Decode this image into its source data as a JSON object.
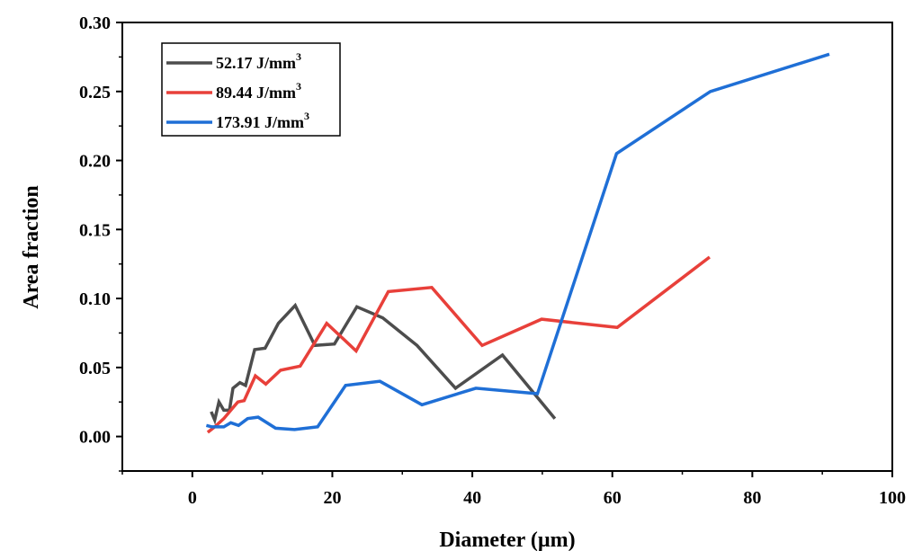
{
  "chart_data": {
    "type": "line",
    "xlabel": "Diameter (µm)",
    "ylabel": "Area fraction",
    "xlim": [
      -10,
      100
    ],
    "ylim": [
      -0.025,
      0.3
    ],
    "x_ticks": [
      {
        "value": 0,
        "label": "0"
      },
      {
        "value": 20,
        "label": "20"
      },
      {
        "value": 40,
        "label": "40"
      },
      {
        "value": 60,
        "label": "60"
      },
      {
        "value": 80,
        "label": "80"
      },
      {
        "value": 100,
        "label": "100"
      }
    ],
    "y_ticks": [
      {
        "value": 0,
        "label": "0.00"
      },
      {
        "value": 0.05,
        "label": "0.05"
      },
      {
        "value": 0.1,
        "label": "0.10"
      },
      {
        "value": 0.15,
        "label": "0.15"
      },
      {
        "value": 0.2,
        "label": "0.20"
      },
      {
        "value": 0.25,
        "label": "0.25"
      },
      {
        "value": 0.3,
        "label": "0.30"
      }
    ],
    "grid": false,
    "legend_position": "top-left",
    "series": [
      {
        "name": "52.17 J/mm",
        "name_sup": "3",
        "color": "#4d4d4d",
        "x": [
          2.7,
          3.2,
          3.8,
          4.5,
          5.3,
          5.8,
          6.8,
          7.6,
          8.9,
          10.4,
          12.3,
          14.7,
          17.5,
          20.3,
          23.5,
          27.2,
          32.1,
          37.6,
          44.3,
          51.8
        ],
        "y": [
          0.018,
          0.012,
          0.025,
          0.019,
          0.019,
          0.035,
          0.039,
          0.037,
          0.063,
          0.064,
          0.082,
          0.095,
          0.066,
          0.067,
          0.094,
          0.086,
          0.066,
          0.035,
          0.059,
          0.013
        ]
      },
      {
        "name": "89.44 J/mm",
        "name_sup": "3",
        "color": "#e8403a",
        "x": [
          2.2,
          3.2,
          4.5,
          5.5,
          6.5,
          7.4,
          9.0,
          10.5,
          12.6,
          15.4,
          19.2,
          23.4,
          28.0,
          34.2,
          41.4,
          49.9,
          60.7,
          73.9
        ],
        "y": [
          0.003,
          0.007,
          0.013,
          0.019,
          0.025,
          0.026,
          0.044,
          0.038,
          0.048,
          0.051,
          0.082,
          0.062,
          0.105,
          0.108,
          0.066,
          0.085,
          0.079,
          0.13
        ]
      },
      {
        "name": "173.91 J/mm",
        "name_sup": "3",
        "color": "#1f6fd6",
        "x": [
          2.0,
          2.8,
          3.5,
          4.5,
          5.5,
          6.6,
          7.9,
          9.4,
          11.9,
          14.6,
          17.9,
          21.9,
          26.8,
          32.8,
          40.5,
          49.3,
          60.6,
          74.0,
          91.0
        ],
        "y": [
          0.008,
          0.007,
          0.007,
          0.007,
          0.01,
          0.008,
          0.013,
          0.014,
          0.006,
          0.005,
          0.007,
          0.037,
          0.04,
          0.023,
          0.035,
          0.031,
          0.205,
          0.25,
          0.277
        ]
      }
    ]
  }
}
